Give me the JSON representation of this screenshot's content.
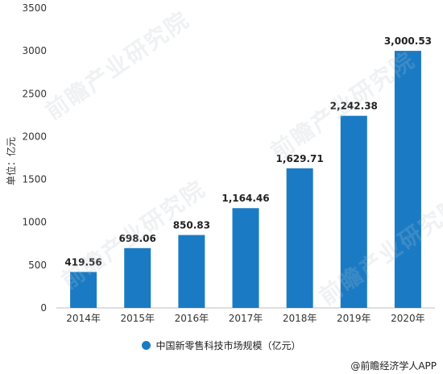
{
  "chart_data": {
    "type": "bar",
    "categories": [
      "2014年",
      "2015年",
      "2016年",
      "2017年",
      "2018年",
      "2019年",
      "2020年"
    ],
    "values": [
      419.56,
      698.06,
      850.83,
      1164.46,
      1629.71,
      2242.38,
      3000.53
    ],
    "value_labels": [
      "419.56",
      "698.06",
      "850.83",
      "1,164.46",
      "1,629.71",
      "2,242.38",
      "3,000.53"
    ],
    "ylabel": "单位：亿元",
    "ylim": [
      0,
      3500
    ],
    "yticks": [
      "0",
      "500",
      "1000",
      "1500",
      "2000",
      "2500",
      "3000",
      "3500"
    ],
    "ytick_values": [
      0,
      500,
      1000,
      1500,
      2000,
      2500,
      3000,
      3500
    ],
    "grid": false,
    "legend": {
      "position": "bottom",
      "label": "中国新零售科技市场规模（亿元）"
    },
    "bar_color": "#1a7bc4"
  },
  "source": "@前瞻经济学人APP",
  "watermark": {
    "text": "前瞻产业研究院"
  }
}
